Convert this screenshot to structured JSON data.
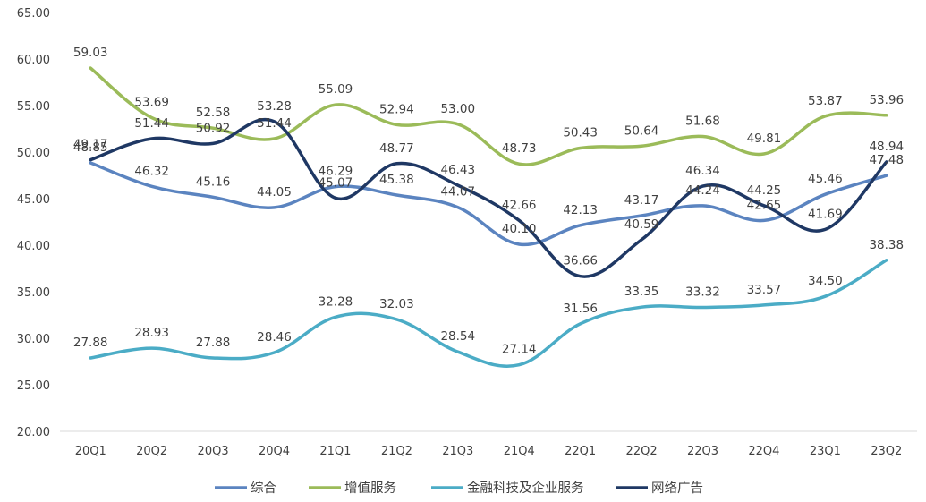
{
  "chart_data": {
    "type": "line",
    "x": [
      "20Q1",
      "20Q2",
      "20Q3",
      "20Q4",
      "21Q1",
      "21Q2",
      "21Q3",
      "21Q4",
      "22Q1",
      "22Q2",
      "22Q3",
      "22Q4",
      "23Q1",
      "23Q2"
    ],
    "ylim": [
      20,
      65
    ],
    "yticks": [
      "20.00",
      "25.00",
      "30.00",
      "35.00",
      "40.00",
      "45.00",
      "50.00",
      "55.00",
      "60.00",
      "65.00"
    ],
    "legend_position": "bottom",
    "grid": false,
    "series": [
      {
        "name": "综合",
        "color": "#5B84C0",
        "values": [
          48.85,
          46.32,
          45.16,
          44.05,
          46.29,
          45.38,
          44.07,
          40.1,
          42.13,
          43.17,
          44.24,
          42.65,
          45.46,
          47.48
        ],
        "labels": [
          "48.85",
          "46.32",
          "45.16",
          "44.05",
          "46.29",
          "45.38",
          "44.07",
          "40.10",
          "42.13",
          "43.17",
          "44.24",
          "42.65",
          "45.46",
          "47.48"
        ]
      },
      {
        "name": "增值服务",
        "color": "#9BBB59",
        "values": [
          59.03,
          53.69,
          52.58,
          51.44,
          55.09,
          52.94,
          53.0,
          48.73,
          50.43,
          50.64,
          51.68,
          49.81,
          53.87,
          53.96
        ],
        "labels": [
          "59.03",
          "53.69",
          "52.58",
          "51.44",
          "55.09",
          "52.94",
          "53.00",
          "48.73",
          "50.43",
          "50.64",
          "51.68",
          "49.81",
          "53.87",
          "53.96"
        ]
      },
      {
        "name": "金融科技及企业服务",
        "color": "#4BACC6",
        "values": [
          27.88,
          28.93,
          27.88,
          28.46,
          32.28,
          32.03,
          28.54,
          27.14,
          31.56,
          33.35,
          33.32,
          33.57,
          34.5,
          38.38
        ],
        "labels": [
          "27.88",
          "28.93",
          "27.88",
          "28.46",
          "32.28",
          "32.03",
          "28.54",
          "27.14",
          "31.56",
          "33.35",
          "33.32",
          "33.57",
          "34.50",
          "38.38"
        ]
      },
      {
        "name": "网络广告",
        "color": "#1F3864",
        "values": [
          49.17,
          51.44,
          50.92,
          53.28,
          45.07,
          48.77,
          46.43,
          42.66,
          36.66,
          40.59,
          46.34,
          44.25,
          41.69,
          48.94
        ],
        "labels": [
          "49.17",
          "51.44",
          "50.92",
          "53.28",
          "45.07",
          "48.77",
          "46.43",
          "42.66",
          "36.66",
          "40.59",
          "46.34",
          "44.25",
          "41.69",
          "48.94"
        ]
      }
    ]
  }
}
